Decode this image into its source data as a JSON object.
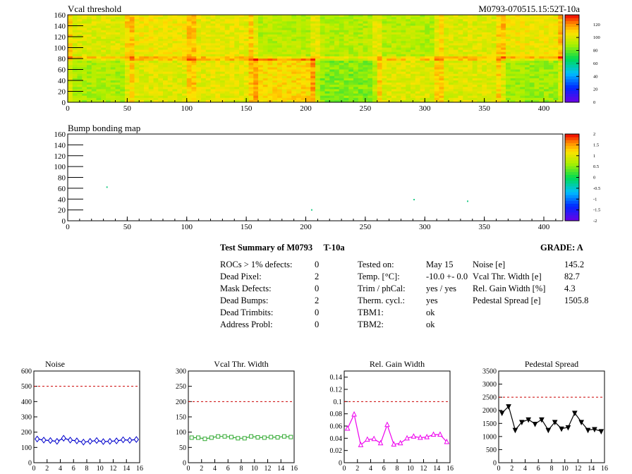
{
  "maps": {
    "vcal": {
      "title": "Vcal threshold",
      "run_id": "M0793-070515.15:52T-10a",
      "xlim": [
        0,
        416
      ],
      "ylim": [
        0,
        160
      ],
      "xticks": [
        0,
        50,
        100,
        150,
        200,
        250,
        300,
        350,
        400
      ],
      "yticks": [
        0,
        20,
        40,
        60,
        80,
        100,
        120,
        140,
        160
      ],
      "palette_ticks": [
        0,
        20,
        40,
        60,
        80,
        100,
        120
      ],
      "palette_range": [
        0,
        135
      ]
    },
    "bump": {
      "title": "Bump bonding map",
      "xlim": [
        0,
        416
      ],
      "ylim": [
        0,
        160
      ],
      "xticks": [
        0,
        50,
        100,
        150,
        200,
        250,
        300,
        350,
        400
      ],
      "yticks": [
        0,
        20,
        40,
        60,
        80,
        100,
        120,
        140,
        160
      ],
      "palette_ticks": [
        -2,
        -1.5,
        -1,
        -0.5,
        0,
        0.5,
        1,
        1.5,
        2
      ],
      "palette_range": [
        -2,
        2
      ],
      "marks": [
        [
          33,
          62
        ],
        [
          205,
          20
        ],
        [
          291,
          39
        ],
        [
          336,
          36
        ]
      ]
    }
  },
  "summary": {
    "title": "Test Summary of M0793     T-10a",
    "grade": "GRADE:  A",
    "col1": [
      {
        "label": "ROCs > 1% defects:",
        "value": "0"
      },
      {
        "label": "Dead Pixel:",
        "value": "2"
      },
      {
        "label": "Mask Defects:",
        "value": "0"
      },
      {
        "label": "Dead Bumps:",
        "value": "2"
      },
      {
        "label": "Dead Trimbits:",
        "value": "0"
      },
      {
        "label": "Address Probl:",
        "value": "0"
      }
    ],
    "col2": [
      {
        "label": "Tested on:",
        "value": "May 15"
      },
      {
        "label": "Temp. [°C]:",
        "value": "-10.0 +- 0.0"
      },
      {
        "label": "Trim / phCal:",
        "value": "yes / yes"
      },
      {
        "label": "Therm. cycl.:",
        "value": "yes"
      },
      {
        "label": "TBM1:",
        "value": "ok"
      },
      {
        "label": "TBM2:",
        "value": "ok"
      }
    ],
    "col3": [
      {
        "label": "Noise [e]",
        "value": "145.2"
      },
      {
        "label": "Vcal Thr. Width [e]",
        "value": "82.7"
      },
      {
        "label": "Rel. Gain Width [%]",
        "value": "4.3"
      },
      {
        "label": "Pedestal Spread [e]",
        "value": "1505.8"
      }
    ]
  },
  "chart_data": [
    {
      "type": "line",
      "title": "Noise",
      "color": "#0000cc",
      "marker": "diamond",
      "x": [
        0.5,
        1.5,
        2.5,
        3.5,
        4.5,
        5.5,
        6.5,
        7.5,
        8.5,
        9.5,
        10.5,
        11.5,
        12.5,
        13.5,
        14.5,
        15.5
      ],
      "values": [
        155,
        148,
        145,
        140,
        160,
        148,
        143,
        135,
        140,
        145,
        138,
        140,
        143,
        150,
        147,
        152
      ],
      "xlim": [
        0,
        16
      ],
      "ylim": [
        0,
        600
      ],
      "xticks": [
        0,
        2,
        4,
        6,
        8,
        10,
        12,
        14,
        16
      ],
      "yticks": [
        0,
        100,
        200,
        300,
        400,
        500,
        600
      ],
      "threshold": 500
    },
    {
      "type": "line",
      "title": "Vcal Thr. Width",
      "color": "#33aa33",
      "marker": "square",
      "x": [
        0.5,
        1.5,
        2.5,
        3.5,
        4.5,
        5.5,
        6.5,
        7.5,
        8.5,
        9.5,
        10.5,
        11.5,
        12.5,
        13.5,
        14.5,
        15.5
      ],
      "values": [
        82,
        82,
        78,
        82,
        86,
        86,
        84,
        80,
        80,
        86,
        83,
        82,
        84,
        83,
        86,
        84
      ],
      "xlim": [
        0,
        16
      ],
      "ylim": [
        0,
        300
      ],
      "xticks": [
        0,
        2,
        4,
        6,
        8,
        10,
        12,
        14,
        16
      ],
      "yticks": [
        0,
        50,
        100,
        150,
        200,
        250,
        300
      ],
      "threshold": 200
    },
    {
      "type": "line",
      "title": "Rel. Gain Width",
      "color": "#ee00ee",
      "marker": "triangle",
      "x": [
        0.5,
        1.5,
        2.5,
        3.5,
        4.5,
        5.5,
        6.5,
        7.5,
        8.5,
        9.5,
        10.5,
        11.5,
        12.5,
        13.5,
        14.5,
        15.5
      ],
      "values": [
        0.056,
        0.079,
        0.029,
        0.038,
        0.039,
        0.032,
        0.062,
        0.03,
        0.032,
        0.04,
        0.043,
        0.041,
        0.042,
        0.046,
        0.046,
        0.034
      ],
      "xlim": [
        0,
        16
      ],
      "ylim": [
        0,
        0.15
      ],
      "xticks": [
        0,
        2,
        4,
        6,
        8,
        10,
        12,
        14,
        16
      ],
      "yticks": [
        0,
        0.02,
        0.04,
        0.06,
        0.08,
        0.1,
        0.12,
        0.14
      ],
      "threshold": 0.1
    },
    {
      "type": "line",
      "title": "Pedestal Spread",
      "color": "#000000",
      "marker": "triangle-down",
      "x": [
        0.5,
        1.5,
        2.5,
        3.5,
        4.5,
        5.5,
        6.5,
        7.5,
        8.5,
        9.5,
        10.5,
        11.5,
        12.5,
        13.5,
        14.5,
        15.5
      ],
      "values": [
        1900,
        2150,
        1250,
        1550,
        1650,
        1480,
        1650,
        1250,
        1550,
        1300,
        1350,
        1900,
        1550,
        1250,
        1280,
        1200
      ],
      "xlim": [
        0,
        16
      ],
      "ylim": [
        0,
        3500
      ],
      "xticks": [
        0,
        2,
        4,
        6,
        8,
        10,
        12,
        14,
        16
      ],
      "yticks": [
        0,
        500,
        1000,
        1500,
        2000,
        2500,
        3000,
        3500
      ],
      "threshold": 2500
    }
  ]
}
